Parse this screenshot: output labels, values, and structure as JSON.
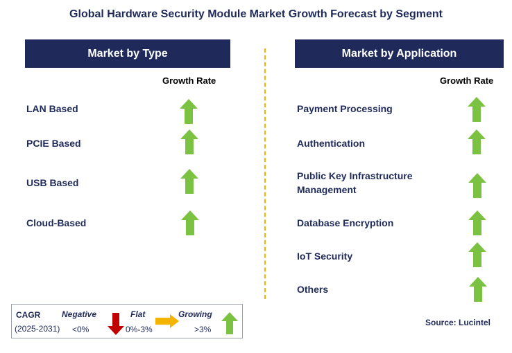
{
  "title": "Global Hardware Security Module Market Growth Forecast by Segment",
  "left_panel": {
    "header": "Market by Type",
    "column_header": "Growth Rate",
    "rows": [
      {
        "label": "LAN Based",
        "trend": "growing"
      },
      {
        "label": "PCIE Based",
        "trend": "growing"
      },
      {
        "label": "USB Based",
        "trend": "growing"
      },
      {
        "label": "Cloud-Based",
        "trend": "growing"
      }
    ]
  },
  "right_panel": {
    "header": "Market by Application",
    "column_header": "Growth Rate",
    "rows": [
      {
        "label": "Payment Processing",
        "trend": "growing"
      },
      {
        "label": "Authentication",
        "trend": "growing"
      },
      {
        "label": "Public Key Infrastructure Management",
        "trend": "growing"
      },
      {
        "label": "Database Encryption",
        "trend": "growing"
      },
      {
        "label": "IoT Security",
        "trend": "growing"
      },
      {
        "label": "Others",
        "trend": "growing"
      }
    ]
  },
  "legend": {
    "cagr_label": "CAGR",
    "period": "(2025-2031)",
    "negative_label": "Negative",
    "negative_range": "<0%",
    "flat_label": "Flat",
    "flat_range": "0%-3%",
    "growing_label": "Growing",
    "growing_range": ">3%"
  },
  "source": "Source: Lucintel",
  "colors": {
    "navy": "#1f2a5a",
    "growing_green": "#7cc242",
    "negative_red": "#c00000",
    "flat_yellow": "#f5b400",
    "divider": "#f5b400"
  },
  "icons": {
    "growing": "green-up-arrow-icon",
    "negative": "red-down-arrow-icon",
    "flat": "yellow-right-arrow-icon"
  }
}
